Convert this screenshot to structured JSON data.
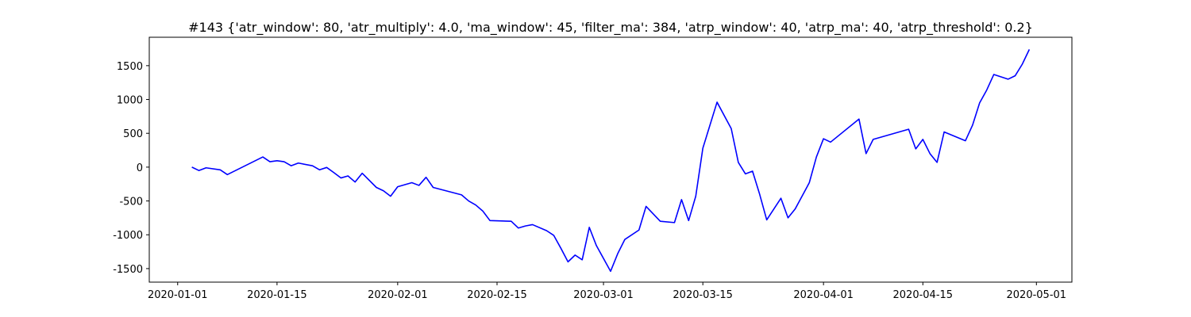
{
  "chart_data": {
    "type": "line",
    "title": "#143 {'atr_window': 80, 'atr_multiply': 4.0, 'ma_window': 45, 'filter_ma': 384, 'atrp_window': 40, 'atrp_ma': 40, 'atrp_threshold': 0.2}",
    "x": [
      "2020-01-03",
      "2020-01-04",
      "2020-01-05",
      "2020-01-07",
      "2020-01-08",
      "2020-01-13",
      "2020-01-14",
      "2020-01-15",
      "2020-01-16",
      "2020-01-17",
      "2020-01-18",
      "2020-01-20",
      "2020-01-21",
      "2020-01-22",
      "2020-01-23",
      "2020-01-24",
      "2020-01-25",
      "2020-01-26",
      "2020-01-27",
      "2020-01-29",
      "2020-01-30",
      "2020-01-31",
      "2020-02-01",
      "2020-02-03",
      "2020-02-04",
      "2020-02-05",
      "2020-02-06",
      "2020-02-10",
      "2020-02-11",
      "2020-02-12",
      "2020-02-13",
      "2020-02-14",
      "2020-02-17",
      "2020-02-18",
      "2020-02-19",
      "2020-02-20",
      "2020-02-22",
      "2020-02-23",
      "2020-02-24",
      "2020-02-25",
      "2020-02-26",
      "2020-02-27",
      "2020-02-28",
      "2020-02-29",
      "2020-03-02",
      "2020-03-03",
      "2020-03-04",
      "2020-03-06",
      "2020-03-07",
      "2020-03-09",
      "2020-03-11",
      "2020-03-12",
      "2020-03-13",
      "2020-03-14",
      "2020-03-15",
      "2020-03-17",
      "2020-03-19",
      "2020-03-20",
      "2020-03-21",
      "2020-03-22",
      "2020-03-23",
      "2020-03-24",
      "2020-03-26",
      "2020-03-27",
      "2020-03-28",
      "2020-03-30",
      "2020-03-31",
      "2020-04-01",
      "2020-04-02",
      "2020-04-06",
      "2020-04-07",
      "2020-04-08",
      "2020-04-13",
      "2020-04-14",
      "2020-04-15",
      "2020-04-16",
      "2020-04-17",
      "2020-04-18",
      "2020-04-21",
      "2020-04-22",
      "2020-04-23",
      "2020-04-24",
      "2020-04-25",
      "2020-04-27",
      "2020-04-28",
      "2020-04-29",
      "2020-04-30"
    ],
    "series": [
      {
        "color": "#0000ff",
        "values": [
          0,
          -50,
          -10,
          -40,
          -110,
          150,
          80,
          95,
          80,
          20,
          60,
          20,
          -40,
          -5,
          -80,
          -160,
          -130,
          -220,
          -90,
          -300,
          -350,
          -430,
          -290,
          -230,
          -270,
          -150,
          -300,
          -410,
          -500,
          -560,
          -650,
          -790,
          -800,
          -900,
          -870,
          -850,
          -940,
          -1010,
          -1200,
          -1400,
          -1300,
          -1370,
          -890,
          -1160,
          -1540,
          -1280,
          -1070,
          -930,
          -580,
          -800,
          -820,
          -480,
          -790,
          -430,
          280,
          960,
          570,
          70,
          -100,
          -60,
          -400,
          -780,
          -460,
          -750,
          -620,
          -230,
          150,
          420,
          370,
          710,
          200,
          410,
          560,
          270,
          410,
          200,
          70,
          520,
          390,
          620,
          950,
          1140,
          1370,
          1300,
          1350,
          1520,
          1740
        ]
      }
    ],
    "xlim": [
      "2019-12-28",
      "2020-05-06"
    ],
    "xticks": [
      "2020-01-01",
      "2020-01-15",
      "2020-02-01",
      "2020-02-15",
      "2020-03-01",
      "2020-03-15",
      "2020-04-01",
      "2020-04-15",
      "2020-05-01"
    ],
    "ylim": [
      -1700,
      1920
    ],
    "yticks": [
      -1500,
      -1000,
      -500,
      0,
      500,
      1000,
      1500
    ],
    "grid": false
  }
}
